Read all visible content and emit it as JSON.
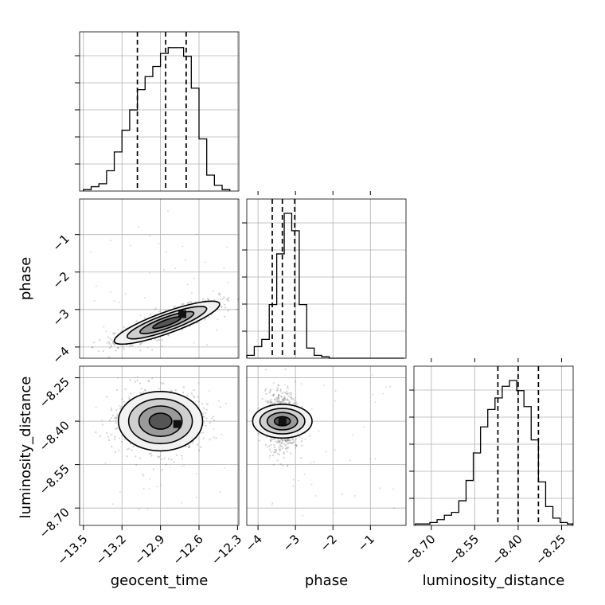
{
  "chart_data": {
    "type": "corner",
    "parameters": [
      "geocent_time",
      "phase",
      "luminosity_distance"
    ],
    "labels": {
      "geocent_time": "geocent_time",
      "phase": "phase",
      "luminosity_distance": "luminosity_distance"
    },
    "ranges": {
      "geocent_time": [
        -13.53,
        -12.29
      ],
      "phase": [
        -4.3,
        -0.05
      ],
      "luminosity_distance": [
        -8.76,
        -8.21
      ]
    },
    "ticks": {
      "geocent_time": [
        -13.5,
        -13.2,
        -12.9,
        -12.6,
        -12.3
      ],
      "phase": [
        -4,
        -3,
        -2,
        -1
      ],
      "luminosity_distance": [
        -8.7,
        -8.55,
        -8.4,
        -8.25
      ]
    },
    "tick_labels": {
      "geocent_time": [
        "−13.5",
        "−13.2",
        "−12.9",
        "−12.6",
        "−12.3"
      ],
      "phase": [
        "−4",
        "−3",
        "−2",
        "−1"
      ],
      "luminosity_distance": [
        "−8.70",
        "−8.55",
        "−8.40",
        "−8.25"
      ]
    },
    "quantiles": {
      "geocent_time": [
        -13.08,
        -12.86,
        -12.7
      ],
      "phase": [
        -3.62,
        -3.35,
        -3.02
      ],
      "luminosity_distance": [
        -8.47,
        -8.4,
        -8.33
      ]
    },
    "histograms": {
      "geocent_time": {
        "edges": [
          -13.5,
          -13.44,
          -13.38,
          -13.32,
          -13.26,
          -13.2,
          -13.14,
          -13.08,
          -13.02,
          -12.96,
          -12.9,
          -12.84,
          -12.78,
          -12.72,
          -12.66,
          -12.6,
          -12.54,
          -12.48,
          -12.42,
          -12.36
        ],
        "counts": [
          0.01,
          0.03,
          0.05,
          0.14,
          0.27,
          0.42,
          0.56,
          0.7,
          0.79,
          0.86,
          0.95,
          0.99,
          0.99,
          0.93,
          0.71,
          0.36,
          0.11,
          0.04,
          0.01
        ]
      },
      "phase": {
        "edges": [
          -4.3,
          -4.1,
          -3.9,
          -3.7,
          -3.5,
          -3.3,
          -3.1,
          -2.9,
          -2.7,
          -2.5,
          -2.3,
          -2.1,
          -1.9,
          -1.7,
          -1.5,
          -1.3,
          -1.1,
          -0.9,
          -0.7,
          -0.5,
          -0.3,
          -0.1
        ],
        "counts": [
          0.02,
          0.08,
          0.13,
          0.37,
          0.72,
          1.0,
          0.88,
          0.37,
          0.07,
          0.02,
          0.01,
          0.0,
          0.0,
          0.0,
          0.0,
          0.0,
          0.0,
          0.0,
          0.0,
          0.0,
          0.0
        ]
      },
      "luminosity_distance": {
        "edges": [
          -8.755,
          -8.73,
          -8.705,
          -8.68,
          -8.655,
          -8.63,
          -8.605,
          -8.58,
          -8.555,
          -8.53,
          -8.505,
          -8.48,
          -8.455,
          -8.43,
          -8.405,
          -8.38,
          -8.355,
          -8.33,
          -8.305,
          -8.28,
          -8.255,
          -8.23,
          -8.212
        ],
        "counts": [
          0.01,
          0.01,
          0.02,
          0.04,
          0.07,
          0.09,
          0.17,
          0.31,
          0.5,
          0.68,
          0.8,
          0.88,
          0.96,
          1.0,
          0.93,
          0.82,
          0.59,
          0.3,
          0.13,
          0.05,
          0.02,
          0.01
        ]
      }
    },
    "density": {
      "phase_vs_geocent_time": {
        "center": [
          -12.85,
          -3.35
        ],
        "sigma": [
          0.2,
          0.28
        ],
        "rho": 0.85,
        "peak": [
          -12.73,
          -3.12
        ]
      },
      "luminosity_distance_vs_geocent_time": {
        "center": [
          -12.9,
          -8.4
        ],
        "sigma": [
          0.16,
          0.05
        ],
        "rho": 0.0,
        "peak": [
          -12.77,
          -8.41
        ]
      },
      "luminosity_distance_vs_phase": {
        "center": [
          -3.35,
          -8.4
        ],
        "sigma": [
          0.22,
          0.05
        ],
        "rho": 0.0,
        "peak": [
          -3.35,
          -8.4
        ]
      }
    },
    "grid": true
  }
}
